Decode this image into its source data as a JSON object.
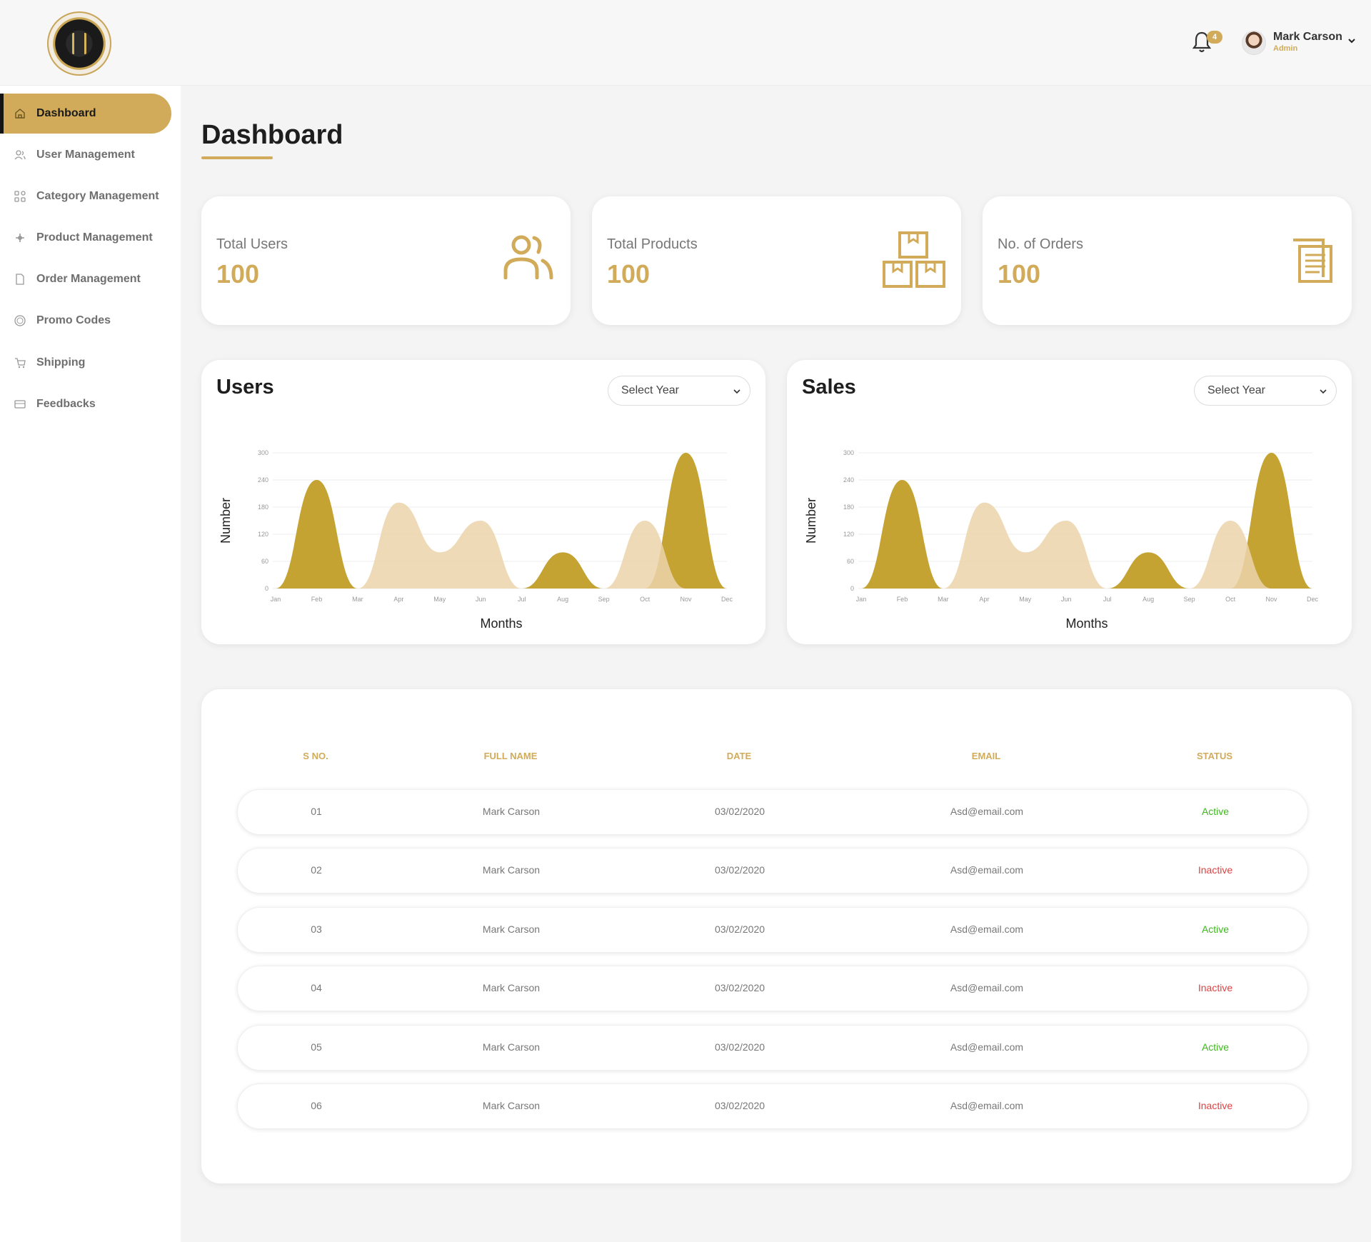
{
  "header": {
    "notification_count": "4",
    "user_name": "Mark Carson",
    "user_role": "Admin"
  },
  "sidebar": {
    "items": [
      {
        "label": "Dashboard",
        "icon": "home-icon",
        "active": true
      },
      {
        "label": "User Management",
        "icon": "users-icon"
      },
      {
        "label": "Category Management",
        "icon": "grid-icon"
      },
      {
        "label": "Product Management",
        "icon": "product-icon"
      },
      {
        "label": "Order Management",
        "icon": "document-icon"
      },
      {
        "label": "Promo Codes",
        "icon": "promo-icon"
      },
      {
        "label": "Shipping",
        "icon": "cart-icon"
      },
      {
        "label": "Feedbacks",
        "icon": "message-icon"
      }
    ]
  },
  "page": {
    "title": "Dashboard"
  },
  "stats": [
    {
      "label": "Total Users",
      "value": "100",
      "icon": "users-icon"
    },
    {
      "label": "Total Products",
      "value": "100",
      "icon": "boxes-icon"
    },
    {
      "label": "No. of Orders",
      "value": "100",
      "icon": "orders-icon"
    }
  ],
  "charts": {
    "users": {
      "title": "Users",
      "select_placeholder": "Select Year"
    },
    "sales": {
      "title": "Sales",
      "select_placeholder": "Select Year"
    }
  },
  "chart_data": [
    {
      "type": "area",
      "title": "Users",
      "xlabel": "Months",
      "ylabel": "Number",
      "ylim": [
        0,
        300
      ],
      "yticks": [
        0,
        60,
        120,
        180,
        240,
        300
      ],
      "categories": [
        "Jan",
        "Feb",
        "Mar",
        "Apr",
        "May",
        "Jun",
        "Jul",
        "Aug",
        "Sep",
        "Oct",
        "Nov",
        "Dec"
      ],
      "series": [
        {
          "values": [
            0,
            240,
            0,
            0,
            0,
            0,
            0,
            80,
            0,
            0,
            300,
            0
          ],
          "color": "#c4a332"
        },
        {
          "values": [
            0,
            0,
            0,
            190,
            80,
            150,
            0,
            0,
            0,
            150,
            0,
            0
          ],
          "color": "#ecd4ab"
        }
      ]
    },
    {
      "type": "area",
      "title": "Sales",
      "xlabel": "Months",
      "ylabel": "Number",
      "ylim": [
        0,
        300
      ],
      "yticks": [
        0,
        60,
        120,
        180,
        240,
        300
      ],
      "categories": [
        "Jan",
        "Feb",
        "Mar",
        "Apr",
        "May",
        "Jun",
        "Jul",
        "Aug",
        "Sep",
        "Oct",
        "Nov",
        "Dec"
      ],
      "series": [
        {
          "values": [
            0,
            240,
            0,
            0,
            0,
            0,
            0,
            80,
            0,
            0,
            300,
            0
          ],
          "color": "#c4a332"
        },
        {
          "values": [
            0,
            0,
            0,
            190,
            80,
            150,
            0,
            0,
            0,
            150,
            0,
            0
          ],
          "color": "#ecd4ab"
        }
      ]
    }
  ],
  "table": {
    "headers": [
      "S NO.",
      "FULL NAME",
      "DATE",
      "EMAIL",
      "STATUS"
    ],
    "rows": [
      {
        "sno": "01",
        "name": "Mark Carson",
        "date": "03/02/2020",
        "email": "Asd@email.com",
        "status": "Active"
      },
      {
        "sno": "02",
        "name": "Mark Carson",
        "date": "03/02/2020",
        "email": "Asd@email.com",
        "status": "Inactive"
      },
      {
        "sno": "03",
        "name": "Mark Carson",
        "date": "03/02/2020",
        "email": "Asd@email.com",
        "status": "Active"
      },
      {
        "sno": "04",
        "name": "Mark Carson",
        "date": "03/02/2020",
        "email": "Asd@email.com",
        "status": "Inactive"
      },
      {
        "sno": "05",
        "name": "Mark Carson",
        "date": "03/02/2020",
        "email": "Asd@email.com",
        "status": "Active"
      },
      {
        "sno": "06",
        "name": "Mark Carson",
        "date": "03/02/2020",
        "email": "Asd@email.com",
        "status": "Inactive"
      }
    ]
  },
  "colors": {
    "accent": "#d1ab59",
    "active": "#3fb61f",
    "inactive": "#e24040"
  }
}
